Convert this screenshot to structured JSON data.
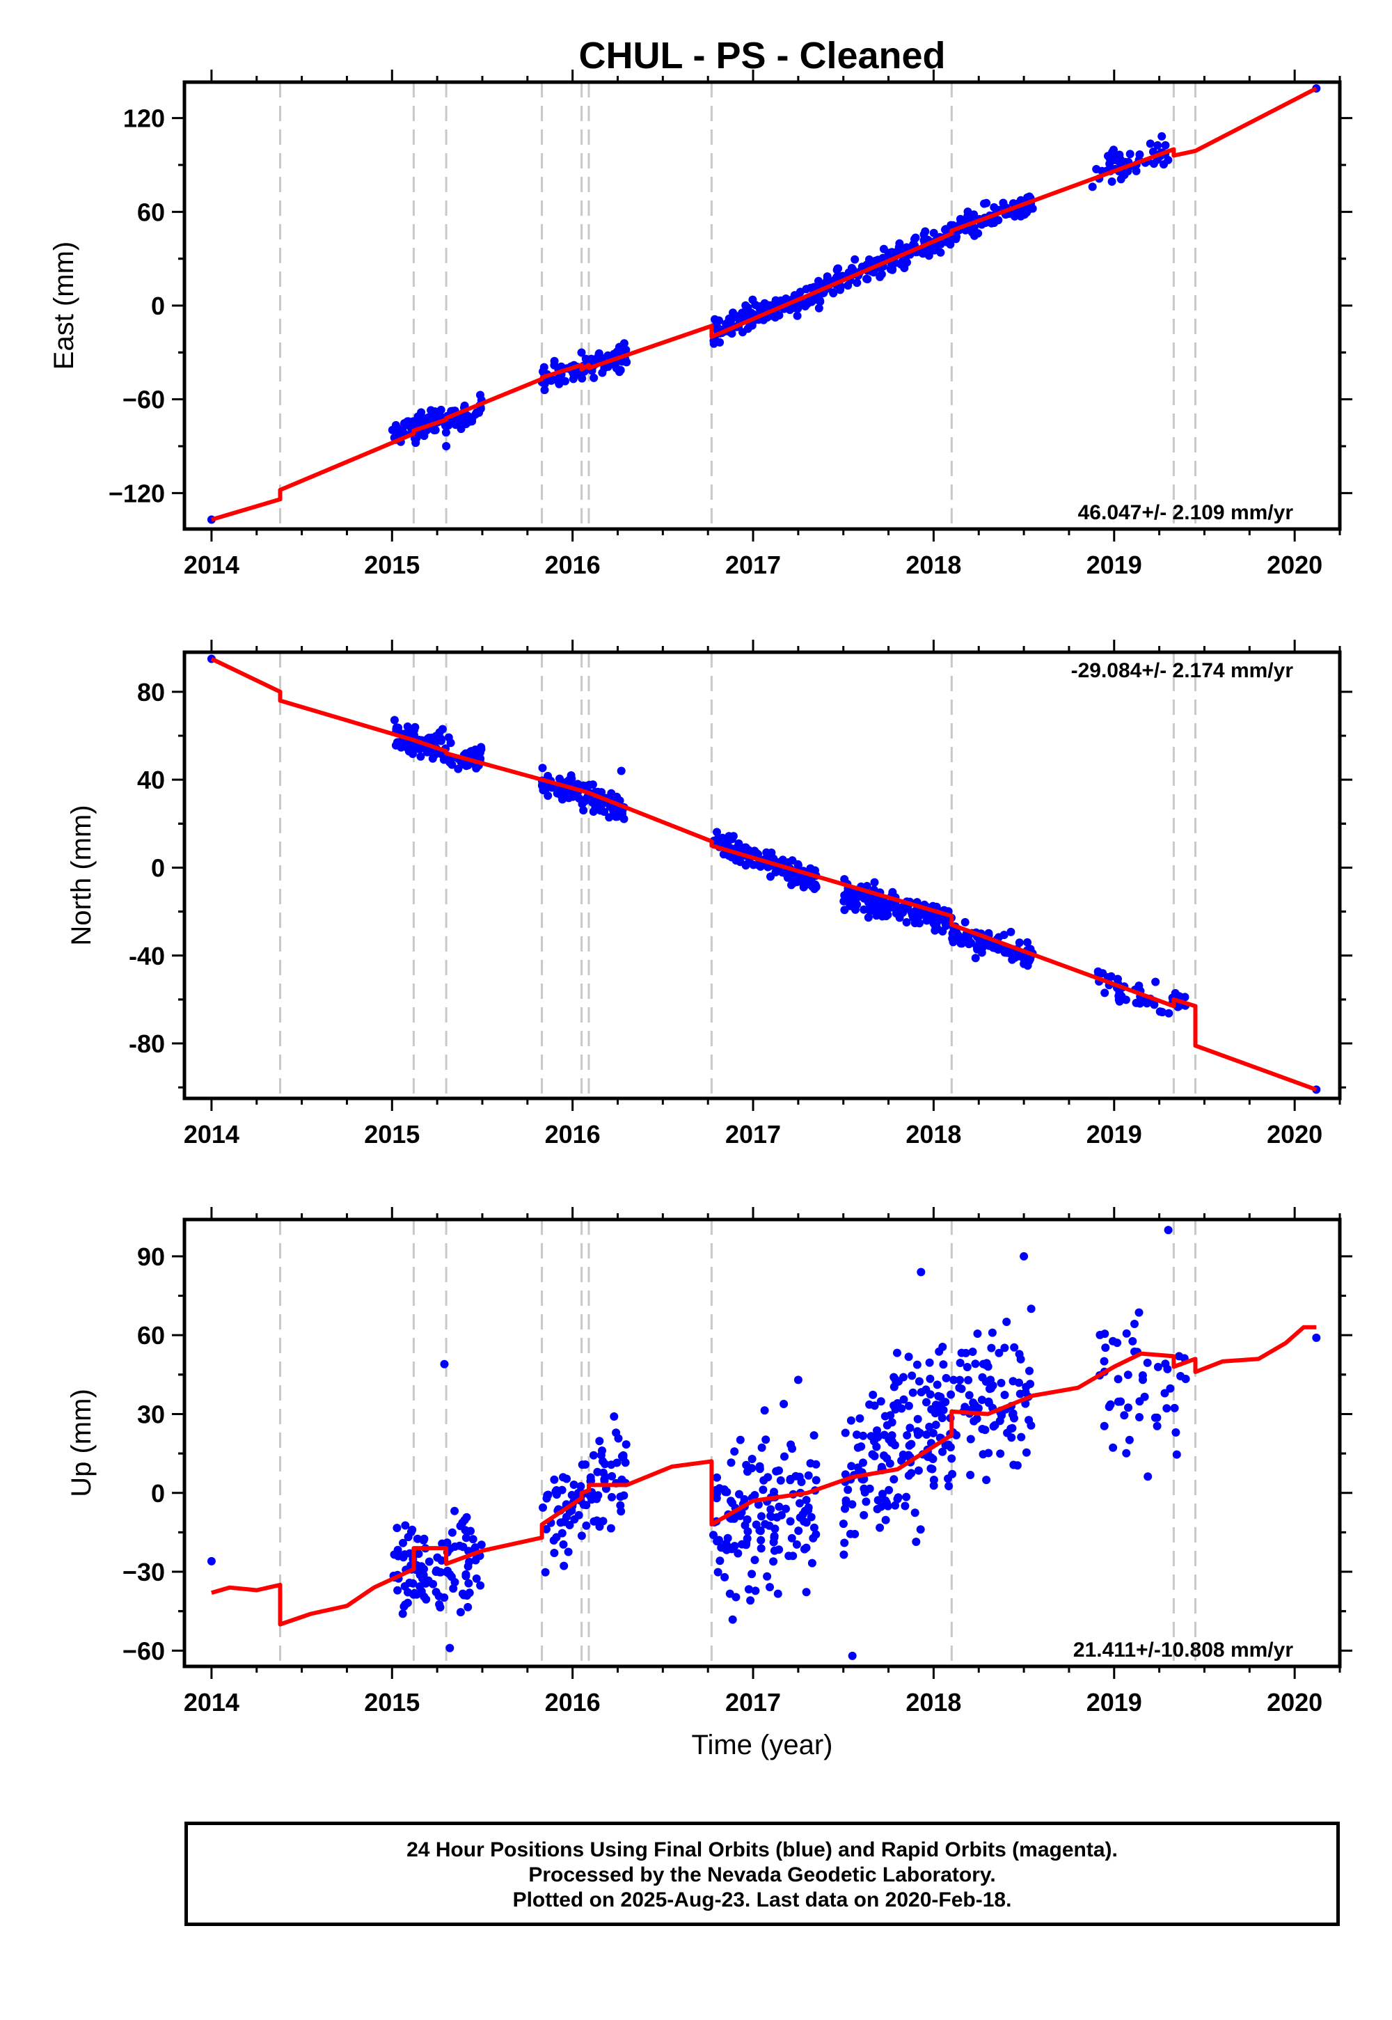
{
  "page": {
    "title": "CHUL  - PS - Cleaned",
    "footer_lines": [
      "24 Hour Positions Using Final Orbits (blue) and Rapid Orbits (magenta).",
      "Processed by the Nevada Geodetic Laboratory.",
      "Plotted on 2025-Aug-23. Last data on 2020-Feb-18."
    ]
  },
  "colors": {
    "data_points": "#0000ff",
    "model_line": "#ff0000",
    "breaks": "#c8c8c8"
  },
  "chart_data": [
    {
      "type": "scatter",
      "title": "CHUL  - PS - Cleaned",
      "xlabel": "",
      "ylabel": "East (mm)",
      "xlim": [
        2013.85,
        2020.25
      ],
      "ylim": [
        -143,
        143
      ],
      "xticks": [
        2014,
        2015,
        2016,
        2017,
        2018,
        2019,
        2020
      ],
      "yticks": [
        -120,
        -60,
        0,
        60,
        120
      ],
      "y_tick_labels": [
        "−120",
        "−60",
        "0",
        "60",
        "120"
      ],
      "annotation": "46.047+/- 2.109 mm/yr",
      "annotation_position": "bottom-right",
      "grid": false,
      "breaks": [
        2014.38,
        2015.12,
        2015.3,
        2015.83,
        2016.05,
        2016.09,
        2016.77,
        2018.1,
        2019.33,
        2019.45
      ],
      "model_segments": [
        [
          [
            2014.0,
            -137
          ],
          [
            2014.38,
            -124
          ]
        ],
        [
          [
            2014.38,
            -118
          ],
          [
            2015.12,
            -82
          ]
        ],
        [
          [
            2015.12,
            -80
          ],
          [
            2015.3,
            -73
          ]
        ],
        [
          [
            2015.3,
            -72
          ],
          [
            2015.83,
            -47
          ]
        ],
        [
          [
            2015.83,
            -46
          ],
          [
            2016.05,
            -38
          ]
        ],
        [
          [
            2016.05,
            -41
          ],
          [
            2016.09,
            -38
          ]
        ],
        [
          [
            2016.09,
            -40
          ],
          [
            2016.77,
            -13
          ]
        ],
        [
          [
            2016.77,
            -20
          ],
          [
            2018.1,
            46
          ]
        ],
        [
          [
            2018.1,
            48
          ],
          [
            2019.33,
            100
          ]
        ],
        [
          [
            2019.33,
            96
          ],
          [
            2019.45,
            99
          ]
        ],
        [
          [
            2019.45,
            99
          ],
          [
            2020.12,
            139
          ]
        ]
      ],
      "clusters": [
        {
          "x": [
            2015.0,
            2015.5
          ],
          "y": [
            -83,
            -66
          ],
          "scatter": 4,
          "n": 110
        },
        {
          "x": [
            2015.83,
            2016.3
          ],
          "y": [
            -46,
            -32
          ],
          "scatter": 4,
          "n": 100
        },
        {
          "x": [
            2016.78,
            2017.4
          ],
          "y": [
            -16,
            10
          ],
          "scatter": 4,
          "n": 150
        },
        {
          "x": [
            2017.4,
            2018.1
          ],
          "y": [
            12,
            45
          ],
          "scatter": 4,
          "n": 170
        },
        {
          "x": [
            2018.1,
            2018.55
          ],
          "y": [
            48,
            66
          ],
          "scatter": 4,
          "n": 90
        },
        {
          "x": [
            2018.9,
            2019.3
          ],
          "y": [
            85,
            100
          ],
          "scatter": 5,
          "n": 50
        }
      ],
      "points": [
        [
          2014.0,
          -137
        ],
        [
          2020.12,
          139
        ],
        [
          2015.3,
          -90
        ],
        [
          2018.88,
          76
        ]
      ]
    },
    {
      "type": "scatter",
      "xlabel": "",
      "ylabel": "North (mm)",
      "xlim": [
        2013.85,
        2020.25
      ],
      "ylim": [
        -105,
        98
      ],
      "xticks": [
        2014,
        2015,
        2016,
        2017,
        2018,
        2019,
        2020
      ],
      "yticks": [
        -80,
        -40,
        0,
        40,
        80
      ],
      "y_tick_labels": [
        "-80",
        "-40",
        "0",
        "40",
        "80"
      ],
      "annotation": "-29.084+/- 2.174 mm/yr",
      "annotation_position": "top-right",
      "grid": false,
      "breaks": [
        2014.38,
        2015.12,
        2015.3,
        2015.83,
        2016.05,
        2016.09,
        2016.77,
        2018.1,
        2019.33,
        2019.45
      ],
      "model_segments": [
        [
          [
            2014.0,
            95
          ],
          [
            2014.38,
            80
          ]
        ],
        [
          [
            2014.38,
            76
          ],
          [
            2015.12,
            58
          ]
        ],
        [
          [
            2015.12,
            58
          ],
          [
            2015.3,
            53
          ]
        ],
        [
          [
            2015.3,
            52
          ],
          [
            2015.83,
            40
          ]
        ],
        [
          [
            2015.83,
            40
          ],
          [
            2016.05,
            35
          ]
        ],
        [
          [
            2016.05,
            35
          ],
          [
            2016.09,
            34
          ]
        ],
        [
          [
            2016.09,
            34
          ],
          [
            2016.77,
            12
          ]
        ],
        [
          [
            2016.77,
            10
          ],
          [
            2018.1,
            -22
          ]
        ],
        [
          [
            2018.1,
            -26
          ],
          [
            2019.33,
            -63
          ]
        ],
        [
          [
            2019.33,
            -60
          ],
          [
            2019.45,
            -63
          ]
        ],
        [
          [
            2019.45,
            -81
          ],
          [
            2020.12,
            -101
          ]
        ]
      ],
      "clusters": [
        {
          "x": [
            2015.0,
            2015.5
          ],
          "y": [
            60,
            49
          ],
          "scatter": 3,
          "n": 110
        },
        {
          "x": [
            2015.83,
            2016.3
          ],
          "y": [
            40,
            26
          ],
          "scatter": 3,
          "n": 100
        },
        {
          "x": [
            2016.78,
            2017.35
          ],
          "y": [
            12,
            -6
          ],
          "scatter": 3,
          "n": 150
        },
        {
          "x": [
            2017.5,
            2018.1
          ],
          "y": [
            -12,
            -24
          ],
          "scatter": 3,
          "n": 170
        },
        {
          "x": [
            2018.1,
            2018.55
          ],
          "y": [
            -31,
            -40
          ],
          "scatter": 3,
          "n": 90
        },
        {
          "x": [
            2018.9,
            2019.4
          ],
          "y": [
            -50,
            -64
          ],
          "scatter": 3,
          "n": 50
        }
      ],
      "points": [
        [
          2014.0,
          95
        ],
        [
          2020.12,
          -101
        ],
        [
          2015.28,
          63
        ],
        [
          2016.27,
          44
        ]
      ]
    },
    {
      "type": "scatter",
      "xlabel": "Time (year)",
      "ylabel": "Up (mm)",
      "xlim": [
        2013.85,
        2020.25
      ],
      "ylim": [
        -66,
        104
      ],
      "xticks": [
        2014,
        2015,
        2016,
        2017,
        2018,
        2019,
        2020
      ],
      "yticks": [
        -60,
        -30,
        0,
        30,
        60,
        90
      ],
      "y_tick_labels": [
        "−60",
        "−30",
        "0",
        "30",
        "60",
        "90"
      ],
      "annotation": "21.411+/-10.808 mm/yr",
      "annotation_position": "bottom-right",
      "grid": false,
      "breaks": [
        2014.38,
        2015.12,
        2015.3,
        2015.83,
        2016.05,
        2016.09,
        2016.77,
        2018.1,
        2019.33,
        2019.45
      ],
      "model_segments": [
        [
          [
            2014.0,
            -38
          ],
          [
            2014.1,
            -36
          ],
          [
            2014.25,
            -37
          ],
          [
            2014.38,
            -35
          ]
        ],
        [
          [
            2014.38,
            -50
          ],
          [
            2014.55,
            -46
          ],
          [
            2014.75,
            -43
          ],
          [
            2014.9,
            -36
          ],
          [
            2015.12,
            -29
          ]
        ],
        [
          [
            2015.12,
            -21
          ],
          [
            2015.3,
            -21
          ]
        ],
        [
          [
            2015.3,
            -27
          ],
          [
            2015.5,
            -22
          ],
          [
            2015.83,
            -17
          ]
        ],
        [
          [
            2015.83,
            -12
          ],
          [
            2016.05,
            -2
          ]
        ],
        [
          [
            2016.05,
            0
          ],
          [
            2016.09,
            1
          ]
        ],
        [
          [
            2016.09,
            3
          ],
          [
            2016.3,
            3
          ],
          [
            2016.55,
            10
          ],
          [
            2016.77,
            12
          ]
        ],
        [
          [
            2016.77,
            -12
          ],
          [
            2017.0,
            -3
          ],
          [
            2017.3,
            0
          ],
          [
            2017.55,
            6
          ],
          [
            2017.8,
            9
          ],
          [
            2018.1,
            22
          ]
        ],
        [
          [
            2018.1,
            31
          ],
          [
            2018.3,
            30
          ],
          [
            2018.55,
            37
          ],
          [
            2018.8,
            40
          ],
          [
            2019.0,
            48
          ],
          [
            2019.15,
            53
          ],
          [
            2019.33,
            52
          ]
        ],
        [
          [
            2019.33,
            48
          ],
          [
            2019.45,
            51
          ]
        ],
        [
          [
            2019.45,
            46
          ],
          [
            2019.6,
            50
          ],
          [
            2019.8,
            51
          ],
          [
            2019.95,
            57
          ],
          [
            2020.05,
            63
          ],
          [
            2020.12,
            63
          ]
        ]
      ],
      "clusters": [
        {
          "x": [
            2015.0,
            2015.5
          ],
          "y": [
            -31,
            -22
          ],
          "scatter": 9,
          "n": 110
        },
        {
          "x": [
            2015.83,
            2016.3
          ],
          "y": [
            -16,
            8
          ],
          "scatter": 10,
          "n": 100
        },
        {
          "x": [
            2016.78,
            2017.35
          ],
          "y": [
            -14,
            -2
          ],
          "scatter": 14,
          "n": 150
        },
        {
          "x": [
            2017.5,
            2018.1
          ],
          "y": [
            5,
            30
          ],
          "scatter": 16,
          "n": 170
        },
        {
          "x": [
            2018.1,
            2018.55
          ],
          "y": [
            34,
            38
          ],
          "scatter": 14,
          "n": 90
        },
        {
          "x": [
            2018.9,
            2019.4
          ],
          "y": [
            45,
            40
          ],
          "scatter": 16,
          "n": 50
        }
      ],
      "points": [
        [
          2014.0,
          -26
        ],
        [
          2020.12,
          59
        ],
        [
          2015.29,
          49
        ],
        [
          2015.32,
          -59
        ],
        [
          2017.55,
          -62
        ],
        [
          2019.3,
          100
        ],
        [
          2018.5,
          90
        ],
        [
          2017.93,
          84
        ],
        [
          2017.25,
          43
        ]
      ]
    }
  ]
}
